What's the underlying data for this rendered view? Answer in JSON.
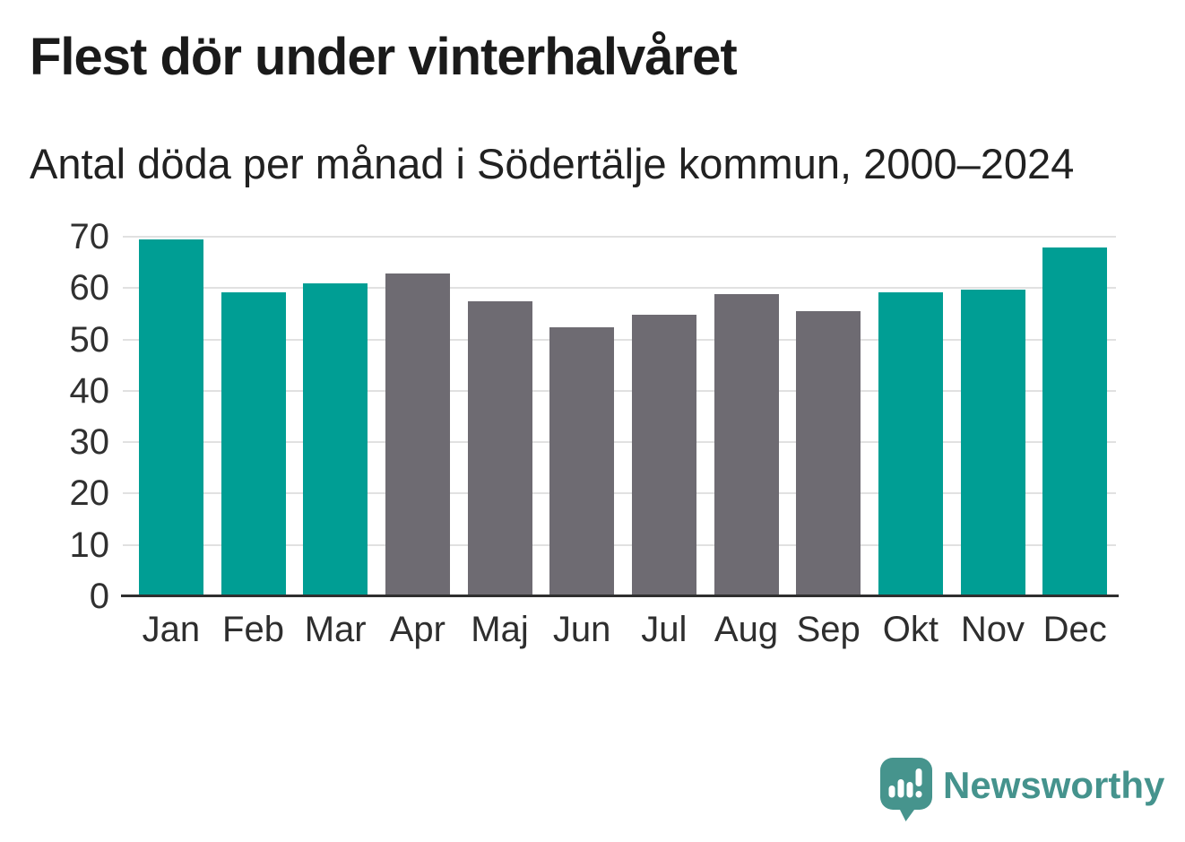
{
  "chart_data": {
    "type": "bar",
    "title": "Flest dör under vinterhalvåret",
    "subtitle": "Antal döda per månad i Södertälje kommun, 2000–2024",
    "categories": [
      "Jan",
      "Feb",
      "Mar",
      "Apr",
      "Maj",
      "Jun",
      "Jul",
      "Aug",
      "Sep",
      "Okt",
      "Nov",
      "Dec"
    ],
    "values": [
      69.4,
      59.1,
      61.0,
      62.9,
      57.4,
      52.3,
      54.8,
      58.9,
      55.5,
      59.2,
      59.7,
      67.9
    ],
    "bar_color_keys": [
      "winter",
      "winter",
      "winter",
      "summer",
      "summer",
      "summer",
      "summer",
      "summer",
      "summer",
      "winter",
      "winter",
      "winter"
    ],
    "colors": {
      "winter": "#009e94",
      "summer": "#6e6b72",
      "gridline": "#e1e1e1",
      "axis_line": "#2f2f2f",
      "tick_text": "#303030"
    },
    "xlabel": "",
    "ylabel": "",
    "ylim": [
      0,
      70
    ],
    "yticks": [
      0,
      10,
      20,
      30,
      40,
      50,
      60,
      70
    ],
    "grid": true,
    "legend": false
  },
  "branding": {
    "logo_text": "Newsworthy",
    "logo_color": "#45938d",
    "logo_icon": "newsworthy-speech-bubble-bar-chart-icon"
  }
}
